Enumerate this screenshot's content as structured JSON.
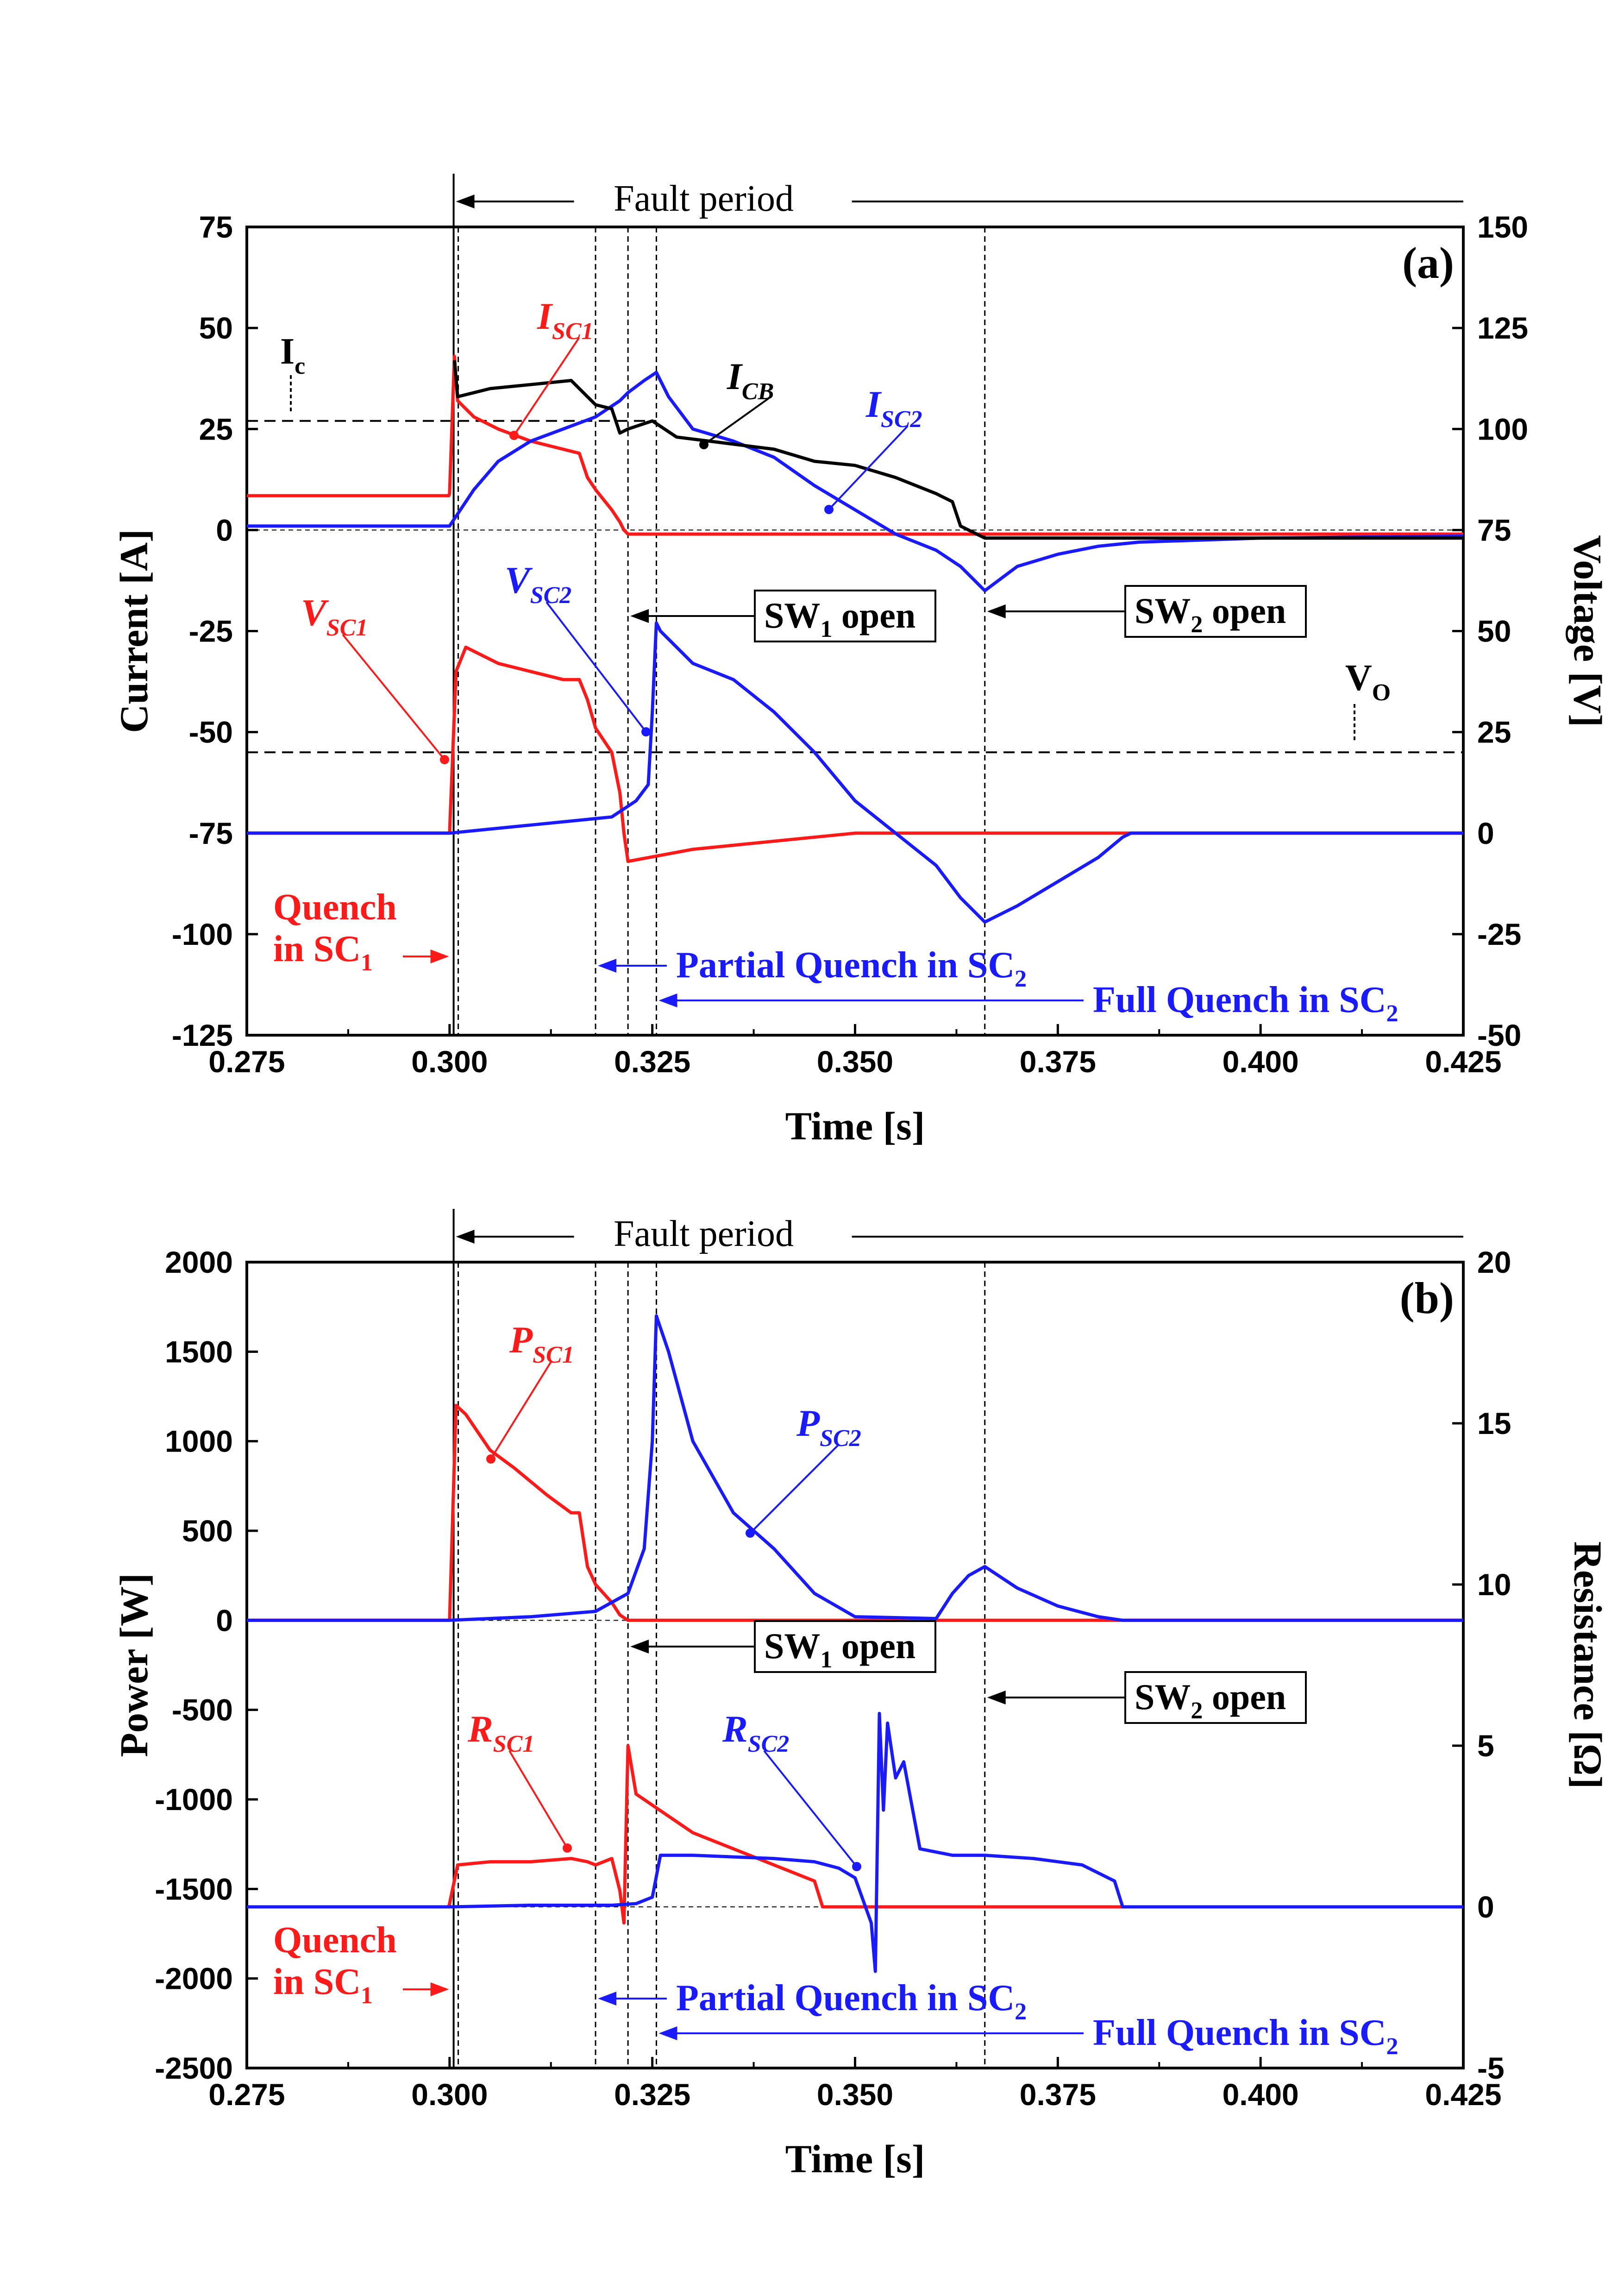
{
  "colors": {
    "red": "#ff1a1a",
    "blue": "#1a1aff",
    "black": "#000000"
  },
  "chart_data": [
    {
      "type": "line",
      "panel_tag": "(a)",
      "xlabel": "Time [s]",
      "ylabel_left": "Current [A]",
      "ylabel_right": "Voltage [V]",
      "xlim": [
        0.275,
        0.425
      ],
      "ylim_left": [
        -125,
        75
      ],
      "ylim_right": [
        -50,
        150
      ],
      "xticks": [
        "0.275",
        "0.300",
        "0.325",
        "0.350",
        "0.375",
        "0.400",
        "0.425"
      ],
      "yticks_left": [
        "75",
        "50",
        "25",
        "0",
        "-25",
        "-50",
        "-75",
        "-100",
        "-125"
      ],
      "yticks_right": [
        "150",
        "125",
        "100",
        "75",
        "50",
        "25",
        "0",
        "-25",
        "-50"
      ],
      "grid": false,
      "annotations": {
        "fault_period": "Fault period",
        "ic": "I",
        "ic_sub": "c",
        "vo": "V",
        "vo_sub": "O",
        "sw1": "SW",
        "sw1_sub": "1",
        "sw1_tail": " open",
        "sw2": "SW",
        "sw2_sub": "2",
        "sw2_tail": " open",
        "quench_l1": "Quench",
        "quench_l2": "in SC",
        "quench_sub": "1",
        "partial": "Partial Quench in SC",
        "partial_sub": "2",
        "full": "Full Quench in SC",
        "full_sub": "2"
      },
      "series": [
        {
          "name": "I",
          "sub": "SC1",
          "color": "#ff1a1a",
          "axis": "left",
          "x": [
            0.275,
            0.2999,
            0.3,
            0.3006,
            0.301,
            0.303,
            0.306,
            0.31,
            0.314,
            0.316,
            0.317,
            0.318,
            0.32,
            0.321,
            0.3215,
            0.322,
            0.325,
            0.35,
            0.4,
            0.425
          ],
          "y": [
            8.5,
            8.5,
            9,
            43,
            32,
            28,
            25,
            22,
            20,
            19,
            13,
            10,
            5,
            2,
            0,
            -1,
            -1,
            -1,
            -1,
            -1
          ]
        },
        {
          "name": "I",
          "sub": "SC2",
          "color": "#1a1aff",
          "axis": "left",
          "x": [
            0.275,
            0.2999,
            0.3,
            0.303,
            0.306,
            0.31,
            0.314,
            0.318,
            0.321,
            0.322,
            0.324,
            0.3255,
            0.327,
            0.33,
            0.335,
            0.34,
            0.345,
            0.35,
            0.355,
            0.36,
            0.363,
            0.366,
            0.37,
            0.375,
            0.38,
            0.385,
            0.4,
            0.425
          ],
          "y": [
            1,
            1,
            1,
            10,
            17,
            22,
            25,
            28,
            32,
            34,
            37,
            39,
            33,
            25,
            22,
            18,
            11,
            5,
            -1,
            -5,
            -9,
            -15,
            -9,
            -6,
            -4,
            -3,
            -2,
            -1.5
          ]
        },
        {
          "name": "I",
          "sub": "CB",
          "color": "#000000",
          "axis": "left",
          "x": [
            0.3006,
            0.301,
            0.305,
            0.31,
            0.315,
            0.317,
            0.318,
            0.32,
            0.321,
            0.322,
            0.325,
            0.328,
            0.332,
            0.34,
            0.345,
            0.35,
            0.355,
            0.36,
            0.362,
            0.363,
            0.366,
            0.4,
            0.425
          ],
          "y": [
            42,
            33,
            35,
            36,
            37,
            33,
            31,
            30,
            24,
            25,
            27,
            23,
            22,
            20,
            17,
            16,
            13,
            9,
            7,
            1,
            -2,
            -2,
            -2
          ]
        },
        {
          "name": "V",
          "sub": "SC1",
          "color": "#ff1a1a",
          "axis": "right",
          "x": [
            0.275,
            0.2999,
            0.3,
            0.3008,
            0.302,
            0.306,
            0.31,
            0.314,
            0.316,
            0.317,
            0.318,
            0.32,
            0.321,
            0.3215,
            0.322,
            0.33,
            0.34,
            0.35,
            0.425
          ],
          "y": [
            0,
            0,
            0,
            40,
            46,
            42,
            40,
            38,
            38,
            33,
            26,
            20,
            10,
            0,
            -7,
            -4,
            -2,
            0,
            0
          ]
        },
        {
          "name": "V",
          "sub": "SC2",
          "color": "#1a1aff",
          "axis": "right",
          "x": [
            0.275,
            0.2999,
            0.3,
            0.305,
            0.31,
            0.315,
            0.32,
            0.323,
            0.3245,
            0.325,
            0.3255,
            0.326,
            0.33,
            0.335,
            0.34,
            0.345,
            0.35,
            0.355,
            0.36,
            0.363,
            0.366,
            0.37,
            0.375,
            0.38,
            0.383,
            0.384,
            0.425
          ],
          "y": [
            0,
            0,
            0,
            1,
            2,
            3,
            4,
            8,
            12,
            30,
            52,
            50,
            42,
            38,
            30,
            20,
            8,
            0,
            -8,
            -16,
            -22,
            -18,
            -12,
            -6,
            -1,
            0,
            0
          ]
        }
      ],
      "ref_lines": {
        "ic_level": 27,
        "vo_level": 20,
        "zero_level": 0
      },
      "vlines": [
        0.3005,
        0.318,
        0.322,
        0.3255,
        0.366
      ]
    },
    {
      "type": "line",
      "panel_tag": "(b)",
      "xlabel": "Time [s]",
      "ylabel_left": "Power [W]",
      "ylabel_right": "Resistance [Ω]",
      "xlim": [
        0.275,
        0.425
      ],
      "ylim_left": [
        -2500,
        2000
      ],
      "ylim_right": [
        -5,
        20
      ],
      "xticks": [
        "0.275",
        "0.300",
        "0.325",
        "0.350",
        "0.375",
        "0.400",
        "0.425"
      ],
      "yticks_left": [
        "2000",
        "1500",
        "1000",
        "500",
        "0",
        "-500",
        "-1000",
        "-1500",
        "-2000",
        "-2500"
      ],
      "yticks_right": [
        "20",
        "15",
        "10",
        "5",
        "0",
        "-5"
      ],
      "grid": false,
      "annotations": {
        "fault_period": "Fault period",
        "sw1": "SW",
        "sw1_sub": "1",
        "sw1_tail": " open",
        "sw2": "SW",
        "sw2_sub": "2",
        "sw2_tail": " open",
        "quench_l1": "Quench",
        "quench_l2": "in SC",
        "quench_sub": "1",
        "partial": "Partial Quench in SC",
        "partial_sub": "2",
        "full": "Full Quench in SC",
        "full_sub": "2"
      },
      "series": [
        {
          "name": "P",
          "sub": "SC1",
          "color": "#ff1a1a",
          "axis": "left",
          "x": [
            0.275,
            0.2999,
            0.3,
            0.3008,
            0.302,
            0.305,
            0.308,
            0.312,
            0.315,
            0.316,
            0.317,
            0.318,
            0.32,
            0.321,
            0.322,
            0.425
          ],
          "y": [
            0,
            0,
            0,
            1200,
            1150,
            950,
            850,
            700,
            600,
            600,
            300,
            200,
            100,
            30,
            0,
            0
          ]
        },
        {
          "name": "P",
          "sub": "SC2",
          "color": "#1a1aff",
          "axis": "left",
          "x": [
            0.275,
            0.2999,
            0.3,
            0.31,
            0.318,
            0.322,
            0.324,
            0.325,
            0.3255,
            0.327,
            0.33,
            0.335,
            0.34,
            0.345,
            0.35,
            0.36,
            0.362,
            0.364,
            0.366,
            0.37,
            0.375,
            0.38,
            0.383,
            0.425
          ],
          "y": [
            0,
            0,
            0,
            20,
            50,
            150,
            400,
            1000,
            1700,
            1500,
            1000,
            600,
            400,
            150,
            20,
            10,
            150,
            250,
            300,
            180,
            80,
            20,
            0,
            0
          ]
        },
        {
          "name": "R",
          "sub": "SC1",
          "color": "#ff1a1a",
          "axis": "right",
          "x": [
            0.275,
            0.2999,
            0.3,
            0.301,
            0.305,
            0.31,
            0.315,
            0.317,
            0.318,
            0.32,
            0.321,
            0.3215,
            0.322,
            0.323,
            0.33,
            0.34,
            0.345,
            0.346,
            0.347,
            0.425
          ],
          "y": [
            0,
            0,
            0.1,
            1.3,
            1.4,
            1.4,
            1.5,
            1.4,
            1.3,
            1.5,
            0.5,
            -0.5,
            5.0,
            3.5,
            2.3,
            1.3,
            0.8,
            0,
            0,
            0
          ]
        },
        {
          "name": "R",
          "sub": "SC2",
          "color": "#1a1aff",
          "axis": "right",
          "x": [
            0.275,
            0.2999,
            0.3,
            0.31,
            0.32,
            0.323,
            0.325,
            0.326,
            0.33,
            0.34,
            0.345,
            0.348,
            0.35,
            0.352,
            0.3525,
            0.353,
            0.3535,
            0.354,
            0.355,
            0.356,
            0.358,
            0.362,
            0.366,
            0.372,
            0.378,
            0.382,
            0.383,
            0.384,
            0.425
          ],
          "y": [
            0,
            0,
            0,
            0.05,
            0.05,
            0.1,
            0.3,
            1.6,
            1.6,
            1.5,
            1.4,
            1.2,
            0.9,
            -0.5,
            -2.0,
            6.0,
            3.0,
            5.7,
            4.0,
            4.5,
            1.8,
            1.6,
            1.6,
            1.5,
            1.3,
            0.8,
            0,
            0,
            0
          ]
        }
      ],
      "ref_lines": {
        "zero_level": 0
      },
      "vlines": [
        0.3005,
        0.318,
        0.322,
        0.3255,
        0.366
      ]
    }
  ]
}
